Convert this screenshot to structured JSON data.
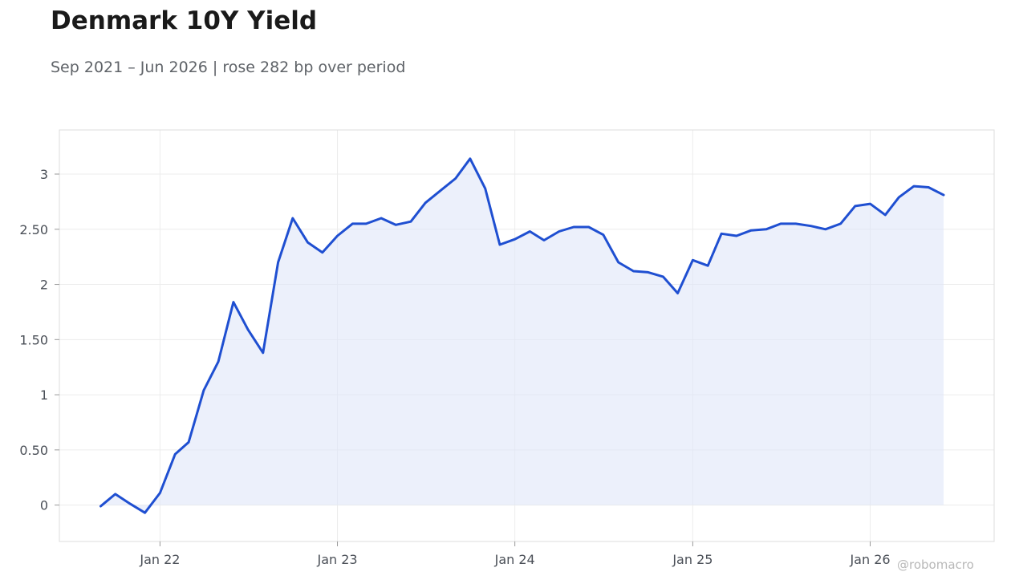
{
  "title": "Denmark 10Y Yield",
  "subtitle": "Sep 2021 – Jun 2026 | rose 282 bp over period",
  "watermark": "@robomacro",
  "colors": {
    "line": "#1f4fd1",
    "fill": "#dfe6f8",
    "grid": "#ececec",
    "frame": "#dddddd"
  },
  "chart_data": {
    "type": "area",
    "title": "Denmark 10Y Yield",
    "subtitle": "Sep 2021 – Jun 2026 | rose 282 bp over period",
    "xlabel": "",
    "ylabel": "",
    "ylim": [
      -0.33,
      3.4
    ],
    "y_ticks": [
      0,
      0.5,
      1,
      1.5,
      2,
      2.5,
      3
    ],
    "y_tick_labels": [
      "0",
      "0.50",
      "1",
      "1.50",
      "2",
      "2.50",
      "3"
    ],
    "x_ticks": [
      "2022-01-01",
      "2023-01-01",
      "2024-01-01",
      "2025-01-01",
      "2026-01-01"
    ],
    "x_tick_labels": [
      "Jan 22",
      "Jan 23",
      "Jan 24",
      "Jan 25",
      "Jan 26"
    ],
    "xlim": [
      "2021-06-08",
      "2026-09-13"
    ],
    "grid": true,
    "series": [
      {
        "x": [
          "2021-09-01",
          "2021-10-01",
          "2021-11-01",
          "2021-12-01",
          "2022-01-01",
          "2022-02-01",
          "2022-03-01",
          "2022-04-01",
          "2022-05-01",
          "2022-06-01",
          "2022-07-01",
          "2022-08-01",
          "2022-09-01",
          "2022-10-01",
          "2022-11-01",
          "2022-12-01",
          "2023-01-01",
          "2023-02-01",
          "2023-03-01",
          "2023-04-01",
          "2023-05-01",
          "2023-06-01",
          "2023-07-01",
          "2023-08-01",
          "2023-09-01",
          "2023-10-01",
          "2023-11-01",
          "2023-12-01",
          "2024-01-01",
          "2024-02-01",
          "2024-03-01",
          "2024-04-01",
          "2024-05-01",
          "2024-06-01",
          "2024-07-01",
          "2024-08-01",
          "2024-09-01",
          "2024-10-01",
          "2024-11-01",
          "2024-12-01",
          "2025-01-01",
          "2025-02-01",
          "2025-03-01",
          "2025-04-01",
          "2025-05-01",
          "2025-06-01",
          "2025-07-01",
          "2025-08-01",
          "2025-09-01",
          "2025-10-01",
          "2025-11-01",
          "2025-12-01",
          "2026-01-01",
          "2026-02-01",
          "2026-03-01",
          "2026-04-01",
          "2026-05-01",
          "2026-06-01"
        ],
        "values": [
          -0.01,
          0.1,
          0.01,
          -0.07,
          0.11,
          0.46,
          0.57,
          1.04,
          1.3,
          1.84,
          1.59,
          1.38,
          2.2,
          2.6,
          2.38,
          2.29,
          2.44,
          2.55,
          2.55,
          2.6,
          2.54,
          2.57,
          2.74,
          2.85,
          2.96,
          3.14,
          2.87,
          2.36,
          2.41,
          2.48,
          2.4,
          2.48,
          2.52,
          2.52,
          2.45,
          2.2,
          2.12,
          2.11,
          2.07,
          1.92,
          2.22,
          2.17,
          2.46,
          2.44,
          2.49,
          2.5,
          2.55,
          2.55,
          2.53,
          2.5,
          2.55,
          2.71,
          2.73,
          2.63,
          2.79,
          2.89,
          2.88,
          2.81
        ]
      }
    ]
  }
}
